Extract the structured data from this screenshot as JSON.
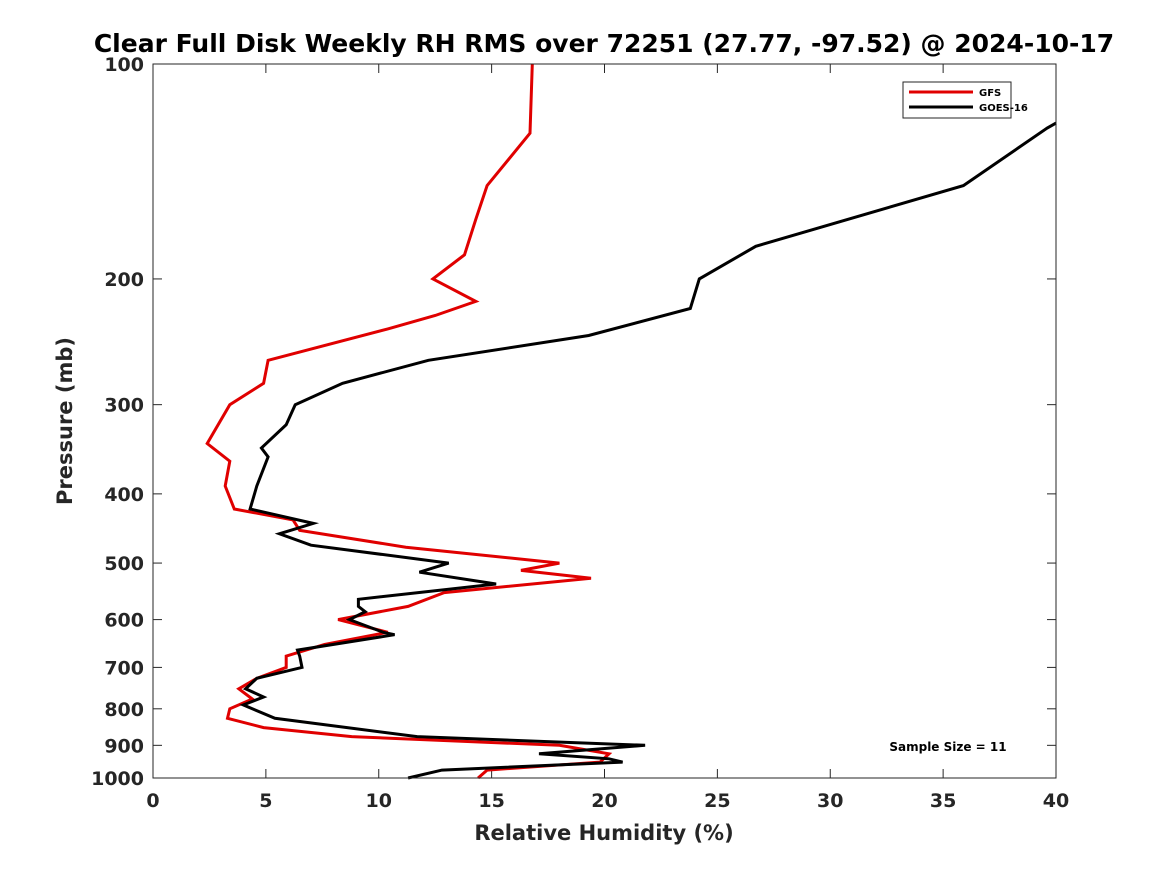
{
  "chart_data": {
    "type": "line",
    "title": "Clear Full Disk Weekly RH RMS over 72251 (27.77, -97.52) @ 2024-10-17",
    "xlabel": "Relative Humidity (%)",
    "ylabel": "Pressure (mb)",
    "xlim": [
      0,
      40
    ],
    "ylim": [
      100,
      1000
    ],
    "yscale": "log",
    "y_reversed": true,
    "x_ticks": [
      0,
      5,
      10,
      15,
      20,
      25,
      30,
      35,
      40
    ],
    "y_ticks": [
      100,
      200,
      300,
      400,
      500,
      600,
      700,
      800,
      900,
      1000
    ],
    "grid": false,
    "legend_position": "top-right",
    "annotation": "Sample Size = 11",
    "series": [
      {
        "name": "GFS",
        "color": "#e00000",
        "points": [
          [
            14.4,
            1000
          ],
          [
            14.8,
            975
          ],
          [
            19.8,
            950
          ],
          [
            20.2,
            925
          ],
          [
            18.0,
            900
          ],
          [
            8.8,
            875
          ],
          [
            4.9,
            850
          ],
          [
            3.3,
            825
          ],
          [
            3.4,
            800
          ],
          [
            4.4,
            775
          ],
          [
            3.8,
            750
          ],
          [
            4.6,
            725
          ],
          [
            5.9,
            700
          ],
          [
            5.9,
            675
          ],
          [
            7.6,
            650
          ],
          [
            10.4,
            625
          ],
          [
            8.2,
            600
          ],
          [
            11.3,
            575
          ],
          [
            12.9,
            550
          ],
          [
            19.4,
            525
          ],
          [
            16.3,
            512
          ],
          [
            18.0,
            500
          ],
          [
            11.2,
            475
          ],
          [
            6.5,
            450
          ],
          [
            6.2,
            435
          ],
          [
            3.6,
            420
          ],
          [
            3.2,
            390
          ],
          [
            3.4,
            360
          ],
          [
            2.4,
            340
          ],
          [
            3.4,
            300
          ],
          [
            4.9,
            280
          ],
          [
            5.1,
            260
          ],
          [
            10.4,
            235
          ],
          [
            12.5,
            225
          ],
          [
            14.3,
            215
          ],
          [
            12.4,
            200
          ],
          [
            13.8,
            185
          ],
          [
            14.3,
            165
          ],
          [
            14.8,
            148
          ],
          [
            16.7,
            125
          ],
          [
            16.8,
            100
          ]
        ]
      },
      {
        "name": "GOES-16",
        "color": "#000000",
        "points": [
          [
            11.3,
            1000
          ],
          [
            12.8,
            975
          ],
          [
            20.8,
            950
          ],
          [
            20.2,
            940
          ],
          [
            17.1,
            925
          ],
          [
            21.8,
            900
          ],
          [
            11.7,
            875
          ],
          [
            5.4,
            825
          ],
          [
            4.4,
            800
          ],
          [
            4.0,
            790
          ],
          [
            4.9,
            770
          ],
          [
            4.1,
            750
          ],
          [
            4.6,
            725
          ],
          [
            6.6,
            700
          ],
          [
            6.5,
            675
          ],
          [
            6.4,
            662
          ],
          [
            10.7,
            630
          ],
          [
            10.2,
            625
          ],
          [
            8.7,
            600
          ],
          [
            9.4,
            585
          ],
          [
            9.1,
            575
          ],
          [
            9.1,
            562
          ],
          [
            15.2,
            535
          ],
          [
            11.8,
            515
          ],
          [
            13.1,
            500
          ],
          [
            7.0,
            472
          ],
          [
            5.6,
            455
          ],
          [
            7.1,
            440
          ],
          [
            4.3,
            420
          ],
          [
            4.6,
            390
          ],
          [
            5.1,
            355
          ],
          [
            4.8,
            345
          ],
          [
            5.9,
            320
          ],
          [
            6.3,
            300
          ],
          [
            8.4,
            280
          ],
          [
            12.2,
            260
          ],
          [
            19.3,
            240
          ],
          [
            23.8,
            220
          ],
          [
            24.2,
            200
          ],
          [
            26.7,
            180
          ],
          [
            35.9,
            148
          ],
          [
            39.6,
            123
          ],
          [
            40.0,
            121
          ]
        ]
      }
    ]
  }
}
